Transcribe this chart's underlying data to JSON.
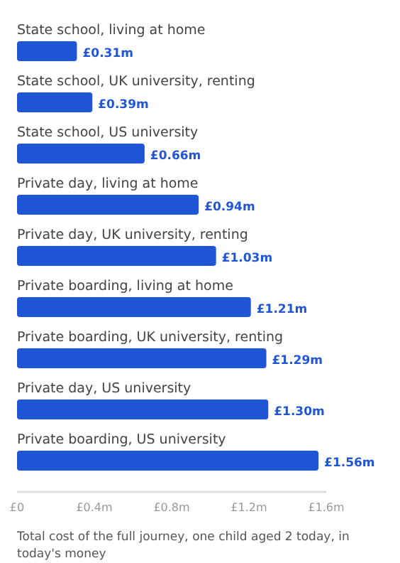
{
  "chart_data": {
    "type": "bar",
    "orientation": "horizontal",
    "categories": [
      "State school, living at home",
      "State school, UK university, renting",
      "State school, US university",
      "Private day, living at home",
      "Private day, UK university, renting",
      "Private boarding, living at home",
      "Private boarding, UK university, renting",
      "Private day, US university",
      "Private boarding, US university"
    ],
    "values": [
      0.31,
      0.39,
      0.66,
      0.94,
      1.03,
      1.21,
      1.29,
      1.3,
      1.56
    ],
    "value_labels": [
      "£0.31m",
      "£0.39m",
      "£0.66m",
      "£0.94m",
      "£1.03m",
      "£1.21m",
      "£1.29m",
      "£1.30m",
      "£1.56m"
    ],
    "color": "#1f55d6",
    "xlim": [
      0,
      1.6
    ],
    "xticks": [
      {
        "value": 0,
        "label": "£0"
      },
      {
        "value": 0.4,
        "label": "£0.4m"
      },
      {
        "value": 0.8,
        "label": "£0.8m"
      },
      {
        "value": 1.2,
        "label": "£1.2m"
      },
      {
        "value": 1.6,
        "label": "£1.6m"
      }
    ],
    "xlabel": "Total cost of the full journey, one child aged 2 today, in today's money",
    "grid": false
  }
}
